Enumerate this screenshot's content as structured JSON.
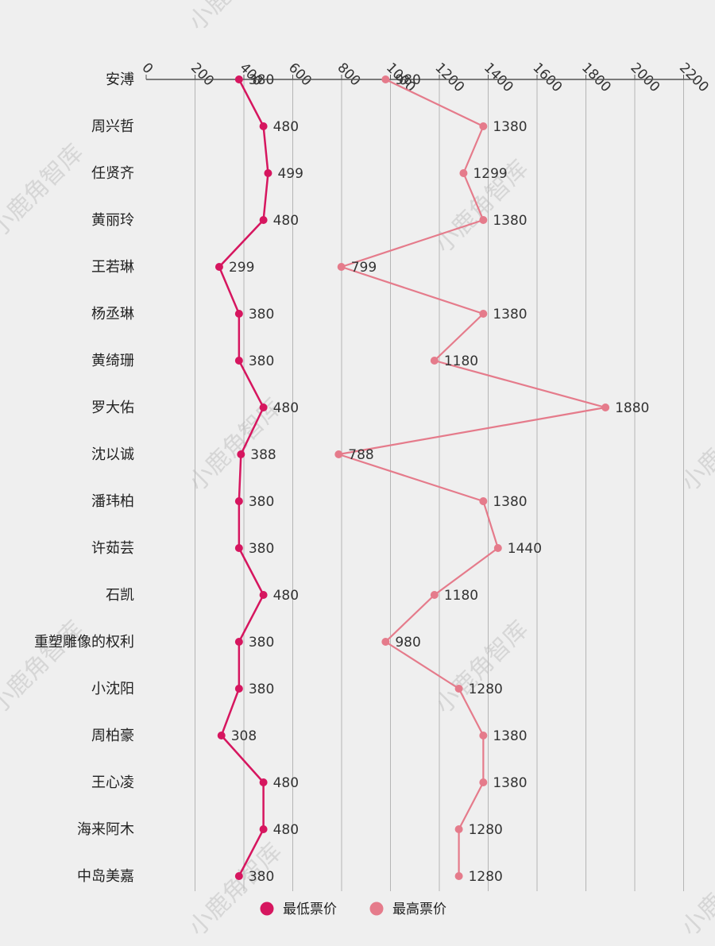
{
  "chart_data": {
    "type": "line",
    "orientation": "horizontal",
    "categories": [
      "安溥",
      "周兴哲",
      "任贤齐",
      "黄丽玲",
      "王若琳",
      "杨丞琳",
      "黄绮珊",
      "罗大佑",
      "沈以诚",
      "潘玮柏",
      "许茹芸",
      "石凯",
      "重塑雕像的权利",
      "小沈阳",
      "周柏豪",
      "王心凌",
      "海来阿木",
      "中岛美嘉"
    ],
    "series": [
      {
        "name": "最低票价",
        "color": "#d6165f",
        "values": [
          380,
          480,
          499,
          480,
          299,
          380,
          380,
          480,
          388,
          380,
          380,
          480,
          380,
          380,
          308,
          480,
          480,
          380
        ]
      },
      {
        "name": "最高票价",
        "color": "#e57b8b",
        "values": [
          980,
          1380,
          1299,
          1380,
          799,
          1380,
          1180,
          1880,
          788,
          1380,
          1440,
          1180,
          980,
          1280,
          1380,
          1380,
          1280,
          1280
        ]
      }
    ],
    "x_ticks": [
      0,
      200,
      400,
      600,
      800,
      1000,
      1200,
      1400,
      1600,
      1800,
      2000,
      2200
    ],
    "xlim": [
      0,
      2260
    ],
    "axis_position": "top",
    "grid": true,
    "legend_position": "bottom-center"
  },
  "colors": {
    "background": "#efefef",
    "axis": "#555555",
    "grid": "#b5b5b5"
  },
  "watermark": "小鹿角智库"
}
